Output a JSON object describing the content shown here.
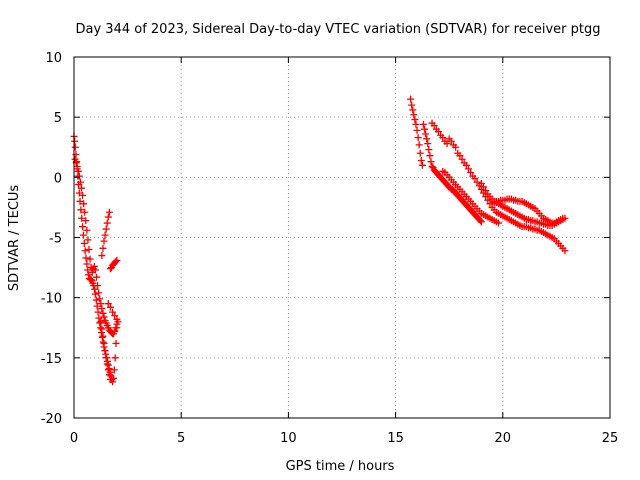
{
  "chart_data": {
    "type": "scatter",
    "title": "Day 344 of 2023, Sidereal Day-to-day VTEC variation (SDTVAR) for receiver ptgg",
    "xlabel": "GPS time / hours",
    "ylabel": "SDTVAR / TECUs",
    "xlim": [
      0,
      25
    ],
    "ylim": [
      -20,
      10
    ],
    "xticks": [
      0,
      5,
      10,
      15,
      20,
      25
    ],
    "yticks": [
      -20,
      -15,
      -10,
      -5,
      0,
      5,
      10
    ],
    "grid": true,
    "marker": "+",
    "series": [
      {
        "name": "SDTVAR",
        "color": "#ff0000",
        "x": [
          0.0,
          0.03,
          0.06,
          0.09,
          0.12,
          0.15,
          0.18,
          0.21,
          0.25,
          0.28,
          0.32,
          0.36,
          0.4,
          0.44,
          0.48,
          0.52,
          0.56,
          0.6,
          0.64,
          0.68,
          0.72,
          0.76,
          0.8,
          0.84,
          0.88,
          0.92,
          0.96,
          1.0,
          1.04,
          1.08,
          1.12,
          1.16,
          1.2,
          1.24,
          1.28,
          1.32,
          1.36,
          1.4,
          1.44,
          1.48,
          1.52,
          1.56,
          1.6,
          1.64,
          1.68,
          1.72,
          1.76,
          1.8,
          1.84,
          1.88,
          1.92,
          1.96,
          2.0,
          0.05,
          0.1,
          0.15,
          0.2,
          0.25,
          0.3,
          0.35,
          0.4,
          0.45,
          0.5,
          0.55,
          0.6,
          0.65,
          0.7,
          0.75,
          0.8,
          0.85,
          0.9,
          0.95,
          1.0,
          1.05,
          1.1,
          1.15,
          1.2,
          1.25,
          1.3,
          1.35,
          1.4,
          1.45,
          1.5,
          1.55,
          1.6,
          1.65,
          1.7,
          1.75,
          1.8,
          1.85,
          1.9,
          1.95,
          2.0,
          2.05,
          1.3,
          1.35,
          1.4,
          1.45,
          1.5,
          1.55,
          1.6,
          1.65,
          1.7,
          1.75,
          1.8,
          1.85,
          1.9,
          1.95,
          2.0,
          1.6,
          1.7,
          1.8,
          1.9,
          2.0,
          1.25,
          1.3,
          1.35,
          1.4,
          1.45,
          1.5,
          1.55,
          1.6,
          1.65,
          1.7,
          15.7,
          15.75,
          15.8,
          15.85,
          15.9,
          15.95,
          16.0,
          16.05,
          16.1,
          16.15,
          16.2,
          16.25,
          16.3,
          16.35,
          16.4,
          16.45,
          16.5,
          16.55,
          16.6,
          16.65,
          16.7,
          16.75,
          16.8,
          16.85,
          16.9,
          16.95,
          17.0,
          17.05,
          17.1,
          17.15,
          17.2,
          17.25,
          17.3,
          17.35,
          17.4,
          17.45,
          17.5,
          17.55,
          17.6,
          17.65,
          17.7,
          17.75,
          17.8,
          17.85,
          17.9,
          17.95,
          18.0,
          18.05,
          18.1,
          18.15,
          18.2,
          18.25,
          18.3,
          18.35,
          18.4,
          18.45,
          18.5,
          18.55,
          18.6,
          18.65,
          18.7,
          18.75,
          18.8,
          18.85,
          18.9,
          18.95,
          19.0,
          16.7,
          16.8,
          16.9,
          17.0,
          17.1,
          17.2,
          17.3,
          17.4,
          17.5,
          17.6,
          17.7,
          17.8,
          17.9,
          18.0,
          18.1,
          18.2,
          18.3,
          18.4,
          18.5,
          18.6,
          18.7,
          18.8,
          18.9,
          19.0,
          19.1,
          19.2,
          19.3,
          19.4,
          19.5,
          19.6,
          19.7,
          19.8,
          19.9,
          20.0,
          20.1,
          20.2,
          20.3,
          20.4,
          20.5,
          20.6,
          20.7,
          20.8,
          20.9,
          21.0,
          21.1,
          21.2,
          21.3,
          21.4,
          21.5,
          21.6,
          21.7,
          21.8,
          21.9,
          22.0,
          22.1,
          22.2,
          22.3,
          22.4,
          22.5,
          22.6,
          22.7,
          22.8,
          22.9,
          19.0,
          19.1,
          19.2,
          19.3,
          19.4,
          19.5,
          19.6,
          19.7,
          19.8,
          19.9,
          20.0,
          20.1,
          20.2,
          20.3,
          20.4,
          20.5,
          20.6,
          20.7,
          20.8,
          20.9,
          21.0,
          21.1,
          21.2,
          21.3,
          21.4,
          21.5,
          21.6,
          21.7,
          21.8,
          21.9,
          22.0,
          22.1,
          22.2,
          22.3,
          22.4,
          22.5,
          22.6,
          22.7,
          22.8,
          19.5,
          19.6,
          19.7,
          19.8,
          19.9,
          20.0,
          20.1,
          20.2,
          20.3,
          20.4,
          20.5,
          20.6,
          20.7,
          20.8,
          20.9,
          21.0,
          21.1,
          21.2,
          21.3,
          21.4,
          21.5,
          21.6,
          21.7,
          21.8,
          21.9,
          22.0,
          22.1,
          22.2,
          22.3,
          22.4,
          22.5,
          22.6,
          22.7,
          22.8,
          22.9,
          17.2,
          17.3,
          17.4,
          17.5,
          17.6,
          17.7,
          17.8,
          17.9,
          18.0,
          18.1,
          18.2,
          18.3,
          18.4,
          18.5,
          18.6,
          18.7,
          18.8,
          18.9,
          19.0,
          19.1,
          19.2,
          19.3,
          19.4,
          19.5,
          19.6,
          19.7,
          19.8
        ],
        "y": [
          3.4,
          3.0,
          2.5,
          1.9,
          1.3,
          0.7,
          0.1,
          -0.6,
          -1.3,
          -2.0,
          -2.7,
          -3.4,
          -4.1,
          -4.8,
          -5.5,
          -6.1,
          -6.7,
          -7.2,
          -7.7,
          -8.1,
          -8.4,
          -8.5,
          -8.5,
          -8.6,
          -8.8,
          -9.0,
          -9.3,
          -9.7,
          -10.2,
          -10.7,
          -11.2,
          -11.7,
          -12.1,
          -12.5,
          -12.9,
          -13.3,
          -13.7,
          -14.1,
          -14.4,
          -14.7,
          -15.0,
          -15.3,
          -15.6,
          -15.9,
          -16.2,
          -16.5,
          -16.8,
          -17.0,
          -16.7,
          -16.0,
          -15.0,
          -13.8,
          -12.5,
          1.5,
          1.2,
          0.9,
          0.5,
          0.1,
          -0.4,
          -0.9,
          -1.5,
          -2.2,
          -2.9,
          -3.6,
          -4.4,
          -5.2,
          -6.0,
          -6.8,
          -7.5,
          -7.9,
          -7.6,
          -7.4,
          -7.7,
          -8.3,
          -9.0,
          -9.6,
          -10.1,
          -10.5,
          -10.9,
          -11.3,
          -11.6,
          -11.9,
          -12.1,
          -12.3,
          -12.5,
          -12.7,
          -12.8,
          -12.9,
          -13.0,
          -13.0,
          -12.8,
          -12.5,
          -12.2,
          -12.0,
          -6.5,
          -5.9,
          -5.3,
          -4.8,
          -4.3,
          -3.8,
          -3.3,
          -2.9,
          -7.6,
          -7.5,
          -7.3,
          -7.2,
          -7.1,
          -7.0,
          -6.9,
          -10.5,
          -10.8,
          -11.2,
          -11.5,
          -11.8,
          -12.0,
          -12.6,
          -13.2,
          -13.8,
          -14.4,
          -15.0,
          -15.5,
          -16.0,
          -16.4,
          -16.8,
          6.5,
          6.0,
          5.6,
          5.2,
          4.8,
          4.4,
          3.9,
          3.3,
          2.7,
          2.0,
          1.4,
          1.0,
          4.4,
          4.0,
          3.6,
          3.2,
          2.8,
          2.3,
          1.8,
          1.3,
          0.9,
          0.8,
          0.6,
          0.5,
          0.4,
          0.3,
          0.2,
          0.1,
          0.0,
          -0.1,
          -0.2,
          -0.3,
          -0.4,
          -0.5,
          -0.6,
          -0.7,
          -0.8,
          -0.9,
          -1.0,
          -1.0,
          -1.1,
          -1.2,
          -1.3,
          -1.4,
          -1.5,
          -1.6,
          -1.7,
          -1.8,
          -1.9,
          -2.0,
          -2.1,
          -2.2,
          -2.3,
          -2.4,
          -2.5,
          -2.6,
          -2.7,
          -2.8,
          -2.9,
          -3.0,
          -3.1,
          -3.2,
          -3.3,
          -3.4,
          -3.5,
          -3.6,
          -3.7,
          4.5,
          4.3,
          4.0,
          3.8,
          3.5,
          3.3,
          3.0,
          2.8,
          3.2,
          3.0,
          2.7,
          2.5,
          2.0,
          1.8,
          1.5,
          1.2,
          1.0,
          0.7,
          0.4,
          0.1,
          -0.1,
          -0.4,
          -0.7,
          -1.0,
          -1.3,
          -1.6,
          -1.9,
          -2.2,
          -2.5,
          -2.7,
          -2.9,
          -3.0,
          -3.1,
          -3.2,
          -3.3,
          -3.4,
          -3.5,
          -3.6,
          -3.7,
          -3.8,
          -3.9,
          -4.0,
          -4.1,
          -4.1,
          -4.1,
          -4.2,
          -4.2,
          -4.3,
          -4.3,
          -4.4,
          -4.4,
          -4.5,
          -4.6,
          -4.7,
          -4.8,
          -4.9,
          -5.0,
          -5.1,
          -5.3,
          -5.5,
          -5.7,
          -5.9,
          -6.1,
          -0.5,
          -0.8,
          -1.1,
          -1.4,
          -1.6,
          -1.8,
          -2.0,
          -2.1,
          -2.2,
          -2.3,
          -2.4,
          -2.5,
          -2.6,
          -2.7,
          -2.8,
          -2.9,
          -3.0,
          -3.1,
          -3.2,
          -3.3,
          -3.4,
          -3.5,
          -3.5,
          -3.6,
          -3.6,
          -3.7,
          -3.7,
          -3.8,
          -3.8,
          -3.9,
          -3.9,
          -4.0,
          -4.0,
          -4.0,
          -3.9,
          -3.8,
          -3.7,
          -3.6,
          -3.5,
          -2.2,
          -2.1,
          -2.0,
          -2.0,
          -1.9,
          -1.9,
          -1.9,
          -1.8,
          -1.8,
          -1.8,
          -1.9,
          -1.9,
          -2.0,
          -2.0,
          -2.0,
          -2.1,
          -2.2,
          -2.3,
          -2.4,
          -2.5,
          -2.6,
          -2.8,
          -3.0,
          -3.2,
          -3.4,
          -3.5,
          -3.6,
          -3.7,
          -3.8,
          -3.8,
          -3.7,
          -3.6,
          -3.5,
          -3.4,
          -3.4,
          0.5,
          0.4,
          0.2,
          0.0,
          -0.2,
          -0.4,
          -0.6,
          -0.8,
          -1.0,
          -1.2,
          -1.4,
          -1.6,
          -1.8,
          -2.0,
          -2.2,
          -2.4,
          -2.6,
          -2.8,
          -3.0,
          -3.1,
          -3.2,
          -3.3,
          -3.4,
          -3.5,
          -3.6,
          -3.7,
          -3.8
        ]
      }
    ]
  }
}
